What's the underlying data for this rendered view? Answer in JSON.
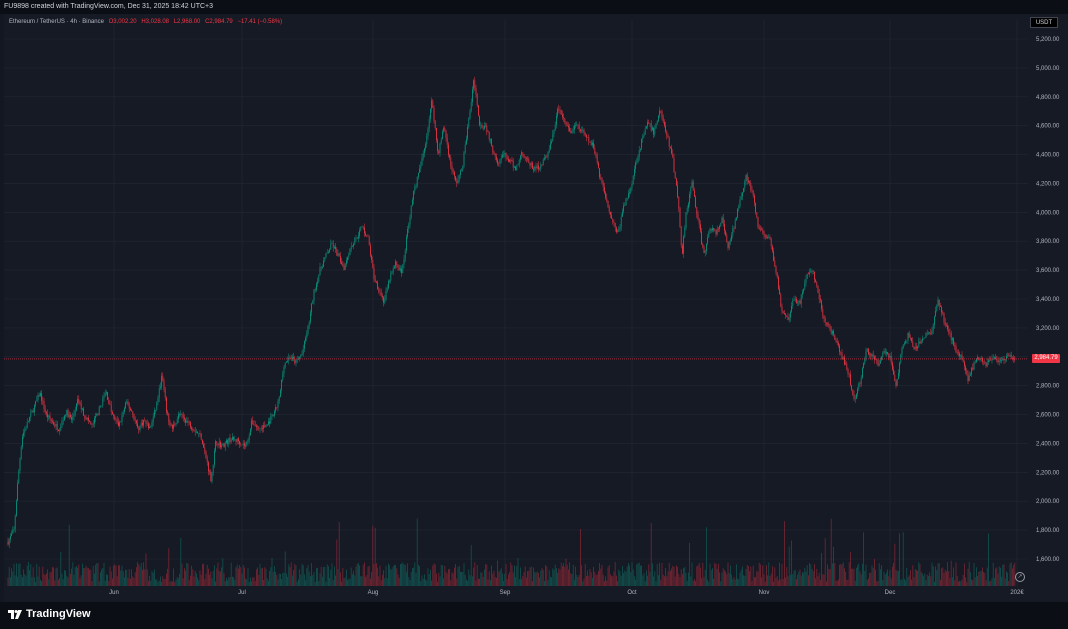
{
  "header": {
    "caption": "FU9898 created with TradingView.com, Dec 31, 2025 18:42 UTC+3"
  },
  "legend": {
    "symbol": "Ethereum / TetherUS · 4h · Binance",
    "open": "O3,002.20",
    "high": "H3,028.08",
    "low": "L2,968.00",
    "close": "C2,984.79",
    "change": "−17.41 (−0.58%)"
  },
  "currency": "USDT",
  "last_price": "2,984.79",
  "brand": "TradingView",
  "colors": {
    "up": "#089981",
    "down": "#f23645",
    "background": "#161a25",
    "grid": "#232734",
    "axis_text": "#b2b5be"
  },
  "chart_data": {
    "type": "line",
    "title": "Ethereum / TetherUS · 4h · Binance",
    "xlabel": "",
    "ylabel": "",
    "ylim": [
      1480,
      5280
    ],
    "xlim": [
      0,
      1004
    ],
    "grid": true,
    "legend": "top-left",
    "x_ticks": [
      {
        "label": "Jun",
        "x": 110
      },
      {
        "label": "Jul",
        "x": 238
      },
      {
        "label": "Aug",
        "x": 369
      },
      {
        "label": "Sep",
        "x": 501
      },
      {
        "label": "Oct",
        "x": 628
      },
      {
        "label": "Nov",
        "x": 760
      },
      {
        "label": "Dec",
        "x": 886
      },
      {
        "label": "202€",
        "x": 1013
      }
    ],
    "y_ticks": [
      "5,200.00",
      "5,000.00",
      "4,800.00",
      "4,600.00",
      "4,400.00",
      "4,200.00",
      "4,000.00",
      "3,800.00",
      "3,600.00",
      "3,400.00",
      "3,200.00",
      "3,000.00",
      "2,800.00",
      "2,600.00",
      "2,400.00",
      "2,200.00",
      "2,000.00",
      "1,800.00",
      "1,600.00"
    ],
    "y_tick_values": [
      5200,
      5000,
      4800,
      4600,
      4400,
      4200,
      4000,
      3800,
      3600,
      3400,
      3200,
      3000,
      2800,
      2600,
      2400,
      2200,
      2000,
      1800,
      1600
    ],
    "last_price": 2984.79,
    "series": [
      {
        "values": [
          [
            4,
            1720
          ],
          [
            10,
            1800
          ],
          [
            14,
            2150
          ],
          [
            18,
            2450
          ],
          [
            24,
            2550
          ],
          [
            30,
            2650
          ],
          [
            36,
            2750
          ],
          [
            42,
            2600
          ],
          [
            48,
            2550
          ],
          [
            55,
            2500
          ],
          [
            62,
            2620
          ],
          [
            68,
            2560
          ],
          [
            74,
            2700
          ],
          [
            80,
            2600
          ],
          [
            88,
            2520
          ],
          [
            96,
            2650
          ],
          [
            102,
            2760
          ],
          [
            108,
            2600
          ],
          [
            115,
            2520
          ],
          [
            122,
            2680
          ],
          [
            128,
            2620
          ],
          [
            134,
            2500
          ],
          [
            140,
            2560
          ],
          [
            146,
            2500
          ],
          [
            152,
            2650
          ],
          [
            158,
            2870
          ],
          [
            163,
            2600
          ],
          [
            168,
            2500
          ],
          [
            175,
            2600
          ],
          [
            182,
            2560
          ],
          [
            190,
            2500
          ],
          [
            197,
            2450
          ],
          [
            202,
            2300
          ],
          [
            207,
            2150
          ],
          [
            212,
            2420
          ],
          [
            218,
            2380
          ],
          [
            226,
            2430
          ],
          [
            234,
            2420
          ],
          [
            242,
            2380
          ],
          [
            248,
            2550
          ],
          [
            255,
            2500
          ],
          [
            262,
            2520
          ],
          [
            270,
            2600
          ],
          [
            275,
            2700
          ],
          [
            280,
            2950
          ],
          [
            286,
            3000
          ],
          [
            292,
            2960
          ],
          [
            298,
            3020
          ],
          [
            304,
            3200
          ],
          [
            310,
            3450
          ],
          [
            316,
            3600
          ],
          [
            322,
            3700
          ],
          [
            328,
            3780
          ],
          [
            334,
            3700
          ],
          [
            340,
            3620
          ],
          [
            346,
            3750
          ],
          [
            352,
            3820
          ],
          [
            358,
            3900
          ],
          [
            364,
            3820
          ],
          [
            370,
            3550
          ],
          [
            376,
            3450
          ],
          [
            380,
            3380
          ],
          [
            386,
            3550
          ],
          [
            392,
            3650
          ],
          [
            398,
            3580
          ],
          [
            404,
            3900
          ],
          [
            410,
            4150
          ],
          [
            416,
            4300
          ],
          [
            422,
            4500
          ],
          [
            428,
            4780
          ],
          [
            434,
            4400
          ],
          [
            440,
            4600
          ],
          [
            446,
            4350
          ],
          [
            452,
            4200
          ],
          [
            458,
            4300
          ],
          [
            464,
            4600
          ],
          [
            470,
            4920
          ],
          [
            476,
            4600
          ],
          [
            482,
            4600
          ],
          [
            488,
            4450
          ],
          [
            494,
            4350
          ],
          [
            500,
            4400
          ],
          [
            506,
            4350
          ],
          [
            512,
            4300
          ],
          [
            518,
            4420
          ],
          [
            524,
            4350
          ],
          [
            530,
            4300
          ],
          [
            536,
            4320
          ],
          [
            542,
            4380
          ],
          [
            548,
            4500
          ],
          [
            554,
            4720
          ],
          [
            560,
            4640
          ],
          [
            566,
            4550
          ],
          [
            572,
            4600
          ],
          [
            578,
            4560
          ],
          [
            584,
            4500
          ],
          [
            590,
            4450
          ],
          [
            596,
            4250
          ],
          [
            602,
            4100
          ],
          [
            608,
            3950
          ],
          [
            614,
            3850
          ],
          [
            620,
            4050
          ],
          [
            626,
            4150
          ],
          [
            632,
            4350
          ],
          [
            638,
            4500
          ],
          [
            644,
            4620
          ],
          [
            650,
            4550
          ],
          [
            656,
            4720
          ],
          [
            662,
            4550
          ],
          [
            668,
            4400
          ],
          [
            674,
            4100
          ],
          [
            678,
            3700
          ],
          [
            682,
            4000
          ],
          [
            688,
            4200
          ],
          [
            694,
            3950
          ],
          [
            700,
            3700
          ],
          [
            706,
            3900
          ],
          [
            712,
            3850
          ],
          [
            718,
            3950
          ],
          [
            724,
            3750
          ],
          [
            730,
            3900
          ],
          [
            736,
            4100
          ],
          [
            742,
            4240
          ],
          [
            748,
            4150
          ],
          [
            754,
            3900
          ],
          [
            760,
            3850
          ],
          [
            766,
            3800
          ],
          [
            772,
            3600
          ],
          [
            778,
            3300
          ],
          [
            784,
            3250
          ],
          [
            790,
            3400
          ],
          [
            796,
            3380
          ],
          [
            802,
            3550
          ],
          [
            808,
            3600
          ],
          [
            814,
            3450
          ],
          [
            820,
            3250
          ],
          [
            826,
            3200
          ],
          [
            832,
            3100
          ],
          [
            838,
            3000
          ],
          [
            844,
            2900
          ],
          [
            850,
            2700
          ],
          [
            856,
            2820
          ],
          [
            862,
            3050
          ],
          [
            868,
            3000
          ],
          [
            874,
            2950
          ],
          [
            880,
            3050
          ],
          [
            886,
            3000
          ],
          [
            892,
            2800
          ],
          [
            898,
            3050
          ],
          [
            904,
            3150
          ],
          [
            910,
            3050
          ],
          [
            916,
            3100
          ],
          [
            922,
            3150
          ],
          [
            928,
            3180
          ],
          [
            934,
            3400
          ],
          [
            940,
            3250
          ],
          [
            946,
            3150
          ],
          [
            952,
            3050
          ],
          [
            958,
            3000
          ],
          [
            964,
            2850
          ],
          [
            970,
            2950
          ],
          [
            976,
            3000
          ],
          [
            982,
            2950
          ],
          [
            988,
            3000
          ],
          [
            994,
            2950
          ],
          [
            1000,
            2980
          ],
          [
            1006,
            3000
          ],
          [
            1012,
            2985
          ]
        ]
      }
    ]
  }
}
